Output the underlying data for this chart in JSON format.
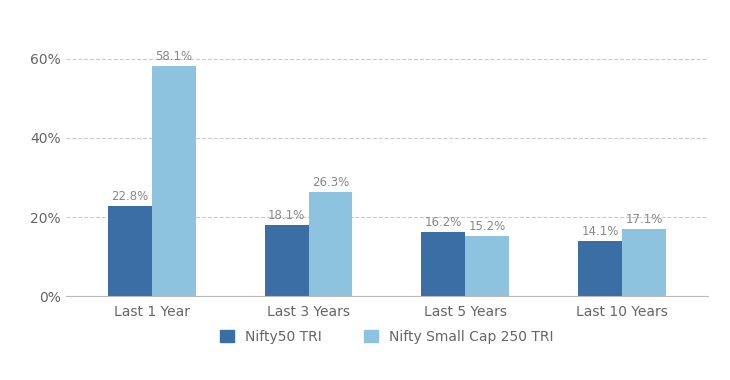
{
  "categories": [
    "Last 1 Year",
    "Last 3 Years",
    "Last 5 Years",
    "Last 10 Years"
  ],
  "series": [
    {
      "name": "Nifty50 TRI",
      "values": [
        22.8,
        18.1,
        16.2,
        14.1
      ],
      "color": "#3a6ea5"
    },
    {
      "name": "Nifty Small Cap 250 TRI",
      "values": [
        58.1,
        26.3,
        15.2,
        17.1
      ],
      "color": "#8ec3e0"
    }
  ],
  "yticks": [
    0,
    20,
    40,
    60
  ],
  "ytick_labels": [
    "0%",
    "20%",
    "40%",
    "60%"
  ],
  "ylim": [
    0,
    70
  ],
  "bar_width": 0.28,
  "background_color": "#ffffff",
  "grid_color": "#cccccc",
  "tick_fontsize": 10,
  "legend_fontsize": 10,
  "value_fontsize": 8.5,
  "value_color": "#888888"
}
